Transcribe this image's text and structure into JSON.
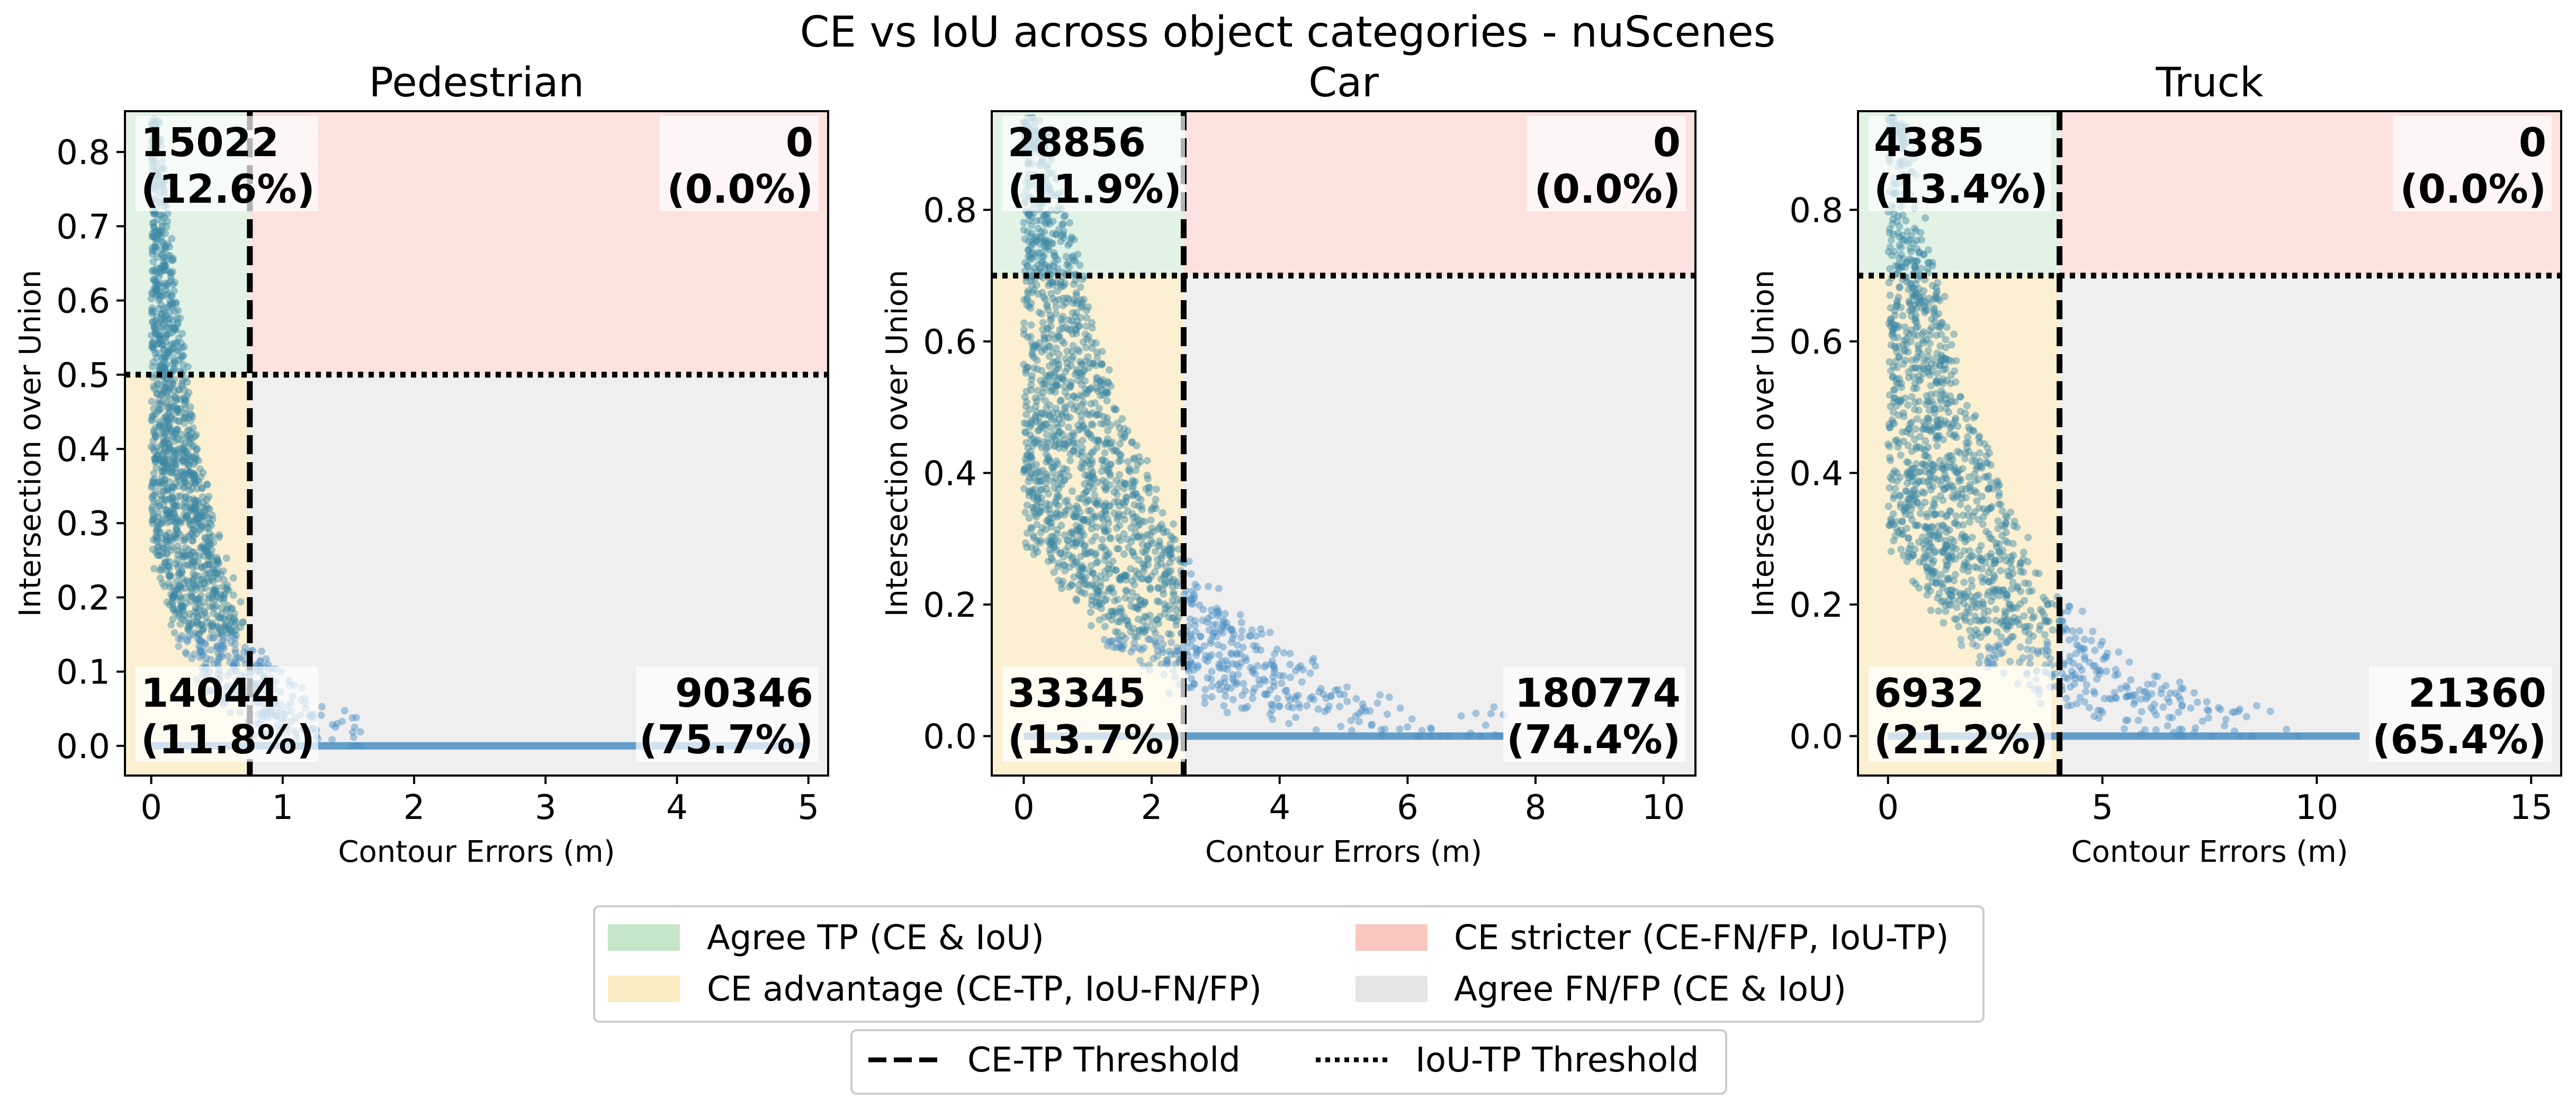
{
  "chart_data": {
    "type": "scatter",
    "title": "CE vs IoU across object categories - nuScenes",
    "colors": {
      "agree_tp": "#c6e6c9",
      "ce_advantage": "#faebc2",
      "ce_stricter": "#f9c6c0",
      "agree_fnfp": "#e6e6e6",
      "points": "#4a8fc3",
      "points_dark": "#3b87a5"
    },
    "panels": [
      {
        "title": "Pedestrian",
        "xlabel": "Contour Errors (m)",
        "ylabel": "Intersection over Union",
        "xlim": [
          -0.2,
          5.15
        ],
        "ylim": [
          -0.04,
          0.855
        ],
        "xticks": [
          0,
          1,
          2,
          3,
          4,
          5
        ],
        "yticks": [
          0.0,
          0.1,
          0.2,
          0.3,
          0.4,
          0.5,
          0.6,
          0.7,
          0.8
        ],
        "ytick_labels": [
          "0.0",
          "0.1",
          "0.2",
          "0.3",
          "0.4",
          "0.5",
          "0.6",
          "0.7",
          "0.8"
        ],
        "ce_threshold": 0.75,
        "iou_threshold": 0.5,
        "counts": {
          "agree_tp": "15022",
          "agree_tp_pct": "(12.6%)",
          "ce_stricter": "0",
          "ce_stricter_pct": "(0.0%)",
          "ce_advantage": "14044",
          "ce_advantage_pct": "(11.8%)",
          "agree_fnfp": "90346",
          "agree_fnfp_pct": "(75.7%)"
        },
        "trend": {
          "a": 0.8,
          "k": 2.6,
          "spread": 0.35,
          "x_zero_line": 5.0
        },
        "n_points": 1500,
        "seed": 11
      },
      {
        "title": "Car",
        "xlabel": "Contour Errors (m)",
        "ylabel": "Intersection over Union",
        "xlim": [
          -0.5,
          10.5
        ],
        "ylim": [
          -0.06,
          0.95
        ],
        "xticks": [
          0,
          2,
          4,
          6,
          8,
          10
        ],
        "yticks": [
          0.0,
          0.2,
          0.4,
          0.6,
          0.8
        ],
        "ytick_labels": [
          "0.0",
          "0.2",
          "0.4",
          "0.6",
          "0.8"
        ],
        "ce_threshold": 2.5,
        "iou_threshold": 0.7,
        "counts": {
          "agree_tp": "28856",
          "agree_tp_pct": "(11.9%)",
          "ce_stricter": "0",
          "ce_stricter_pct": "(0.0%)",
          "ce_advantage": "33345",
          "ce_advantage_pct": "(13.7%)",
          "agree_fnfp": "180774",
          "agree_fnfp_pct": "(74.4%)"
        },
        "trend": {
          "a": 0.92,
          "k": 0.55,
          "spread": 0.4,
          "x_zero_line": 7.5
        },
        "n_points": 1800,
        "seed": 23
      },
      {
        "title": "Truck",
        "xlabel": "Contour Errors (m)",
        "ylabel": "Intersection over Union",
        "xlim": [
          -0.7,
          15.7
        ],
        "ylim": [
          -0.06,
          0.95
        ],
        "xticks": [
          0,
          5,
          10,
          15
        ],
        "yticks": [
          0.0,
          0.2,
          0.4,
          0.6,
          0.8
        ],
        "ytick_labels": [
          "0.0",
          "0.2",
          "0.4",
          "0.6",
          "0.8"
        ],
        "ce_threshold": 4.0,
        "iou_threshold": 0.7,
        "counts": {
          "agree_tp": "4385",
          "agree_tp_pct": "(13.4%)",
          "ce_stricter": "0",
          "ce_stricter_pct": "(0.0%)",
          "ce_advantage": "6932",
          "ce_advantage_pct": "(21.2%)",
          "agree_fnfp": "21360",
          "agree_fnfp_pct": "(65.4%)"
        },
        "trend": {
          "a": 0.9,
          "k": 0.42,
          "spread": 0.55,
          "x_zero_line": 11.0
        },
        "n_points": 1400,
        "seed": 37
      }
    ],
    "legend_regions": [
      {
        "key": "agree_tp",
        "label": "Agree TP (CE & IoU)"
      },
      {
        "key": "ce_stricter",
        "label": "CE stricter (CE-FN/FP, IoU-TP)"
      },
      {
        "key": "ce_advantage",
        "label": "CE advantage (CE-TP, IoU-FN/FP)"
      },
      {
        "key": "agree_fnfp",
        "label": "Agree FN/FP (CE & IoU)"
      }
    ],
    "legend_lines": [
      {
        "key": "ce",
        "label": "CE-TP Threshold",
        "style": "dashed"
      },
      {
        "key": "iou",
        "label": "IoU-TP Threshold",
        "style": "dotted"
      }
    ]
  }
}
